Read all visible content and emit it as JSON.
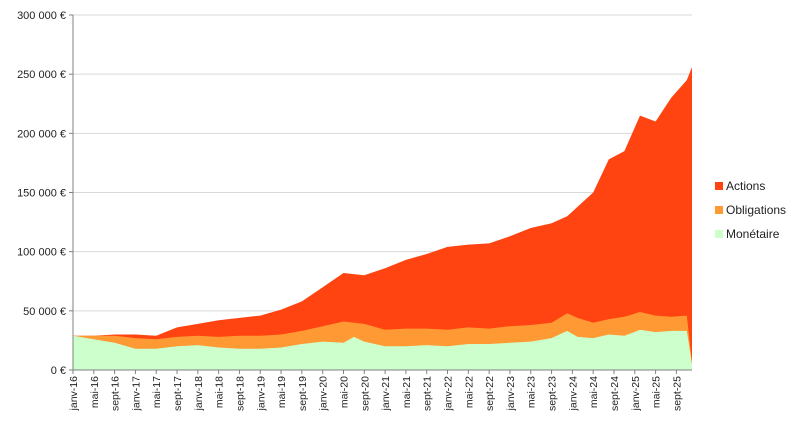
{
  "chart_data": {
    "type": "area",
    "stacked": true,
    "title": "",
    "xlabel": "",
    "ylabel": "",
    "ylim": [
      0,
      300000
    ],
    "yticks": [
      0,
      50000,
      100000,
      150000,
      200000,
      250000,
      300000
    ],
    "ytick_labels": [
      "0 €",
      "50 000 €",
      "100 000 €",
      "150 000 €",
      "200 000 €",
      "250 000 €",
      "300 000 €"
    ],
    "grid": true,
    "legend_position": "right",
    "x_start": "2016-01",
    "x_end": "2025-12",
    "xtick_labels": [
      "janv-16",
      "mai-16",
      "sept-16",
      "janv-17",
      "mai-17",
      "sept-17",
      "janv-18",
      "mai-18",
      "sept-18",
      "janv-19",
      "mai-19",
      "sept-19",
      "janv-20",
      "mai-20",
      "sept-20",
      "janv-21",
      "mai-21",
      "sept-21",
      "janv-22",
      "mai-22",
      "sept-22",
      "janv-23",
      "mai-23",
      "sept-23",
      "janv-24",
      "mai-24",
      "sept-24",
      "janv-25",
      "mai-25",
      "sept-25"
    ],
    "series": [
      {
        "name": "Monétaire",
        "color": "#ccffcc",
        "points": [
          [
            "2016-01",
            29000
          ],
          [
            "2016-05",
            26000
          ],
          [
            "2016-09",
            23000
          ],
          [
            "2017-01",
            18000
          ],
          [
            "2017-05",
            18000
          ],
          [
            "2017-09",
            20000
          ],
          [
            "2018-01",
            21000
          ],
          [
            "2018-05",
            19000
          ],
          [
            "2018-09",
            18000
          ],
          [
            "2019-01",
            18000
          ],
          [
            "2019-05",
            19000
          ],
          [
            "2019-09",
            22000
          ],
          [
            "2020-01",
            24000
          ],
          [
            "2020-05",
            23000
          ],
          [
            "2020-07",
            28000
          ],
          [
            "2020-09",
            24000
          ],
          [
            "2021-01",
            20000
          ],
          [
            "2021-05",
            20000
          ],
          [
            "2021-09",
            21000
          ],
          [
            "2022-01",
            20000
          ],
          [
            "2022-05",
            22000
          ],
          [
            "2022-09",
            22000
          ],
          [
            "2023-01",
            23000
          ],
          [
            "2023-05",
            24000
          ],
          [
            "2023-09",
            27000
          ],
          [
            "2023-12",
            33000
          ],
          [
            "2024-02",
            28000
          ],
          [
            "2024-05",
            27000
          ],
          [
            "2024-08",
            30000
          ],
          [
            "2024-11",
            29000
          ],
          [
            "2025-02",
            34000
          ],
          [
            "2025-05",
            32000
          ],
          [
            "2025-08",
            33000
          ],
          [
            "2025-11",
            33000
          ],
          [
            "2025-12",
            5000
          ]
        ]
      },
      {
        "name": "Obligations",
        "color": "#ff9933",
        "points": [
          [
            "2016-01",
            29000
          ],
          [
            "2016-05",
            29000
          ],
          [
            "2016-09",
            29000
          ],
          [
            "2017-01",
            27000
          ],
          [
            "2017-05",
            26000
          ],
          [
            "2017-09",
            28000
          ],
          [
            "2018-01",
            29000
          ],
          [
            "2018-05",
            28000
          ],
          [
            "2018-09",
            29000
          ],
          [
            "2019-01",
            29000
          ],
          [
            "2019-05",
            30000
          ],
          [
            "2019-09",
            33000
          ],
          [
            "2020-01",
            37000
          ],
          [
            "2020-05",
            41000
          ],
          [
            "2020-09",
            39000
          ],
          [
            "2021-01",
            34000
          ],
          [
            "2021-05",
            35000
          ],
          [
            "2021-09",
            35000
          ],
          [
            "2022-01",
            34000
          ],
          [
            "2022-05",
            36000
          ],
          [
            "2022-09",
            35000
          ],
          [
            "2023-01",
            37000
          ],
          [
            "2023-05",
            38000
          ],
          [
            "2023-09",
            40000
          ],
          [
            "2023-12",
            48000
          ],
          [
            "2024-02",
            44000
          ],
          [
            "2024-05",
            40000
          ],
          [
            "2024-08",
            43000
          ],
          [
            "2024-11",
            45000
          ],
          [
            "2025-02",
            49000
          ],
          [
            "2025-05",
            46000
          ],
          [
            "2025-08",
            45000
          ],
          [
            "2025-11",
            46000
          ],
          [
            "2025-12",
            6000
          ]
        ]
      },
      {
        "name": "Actions",
        "color": "#ff4411",
        "points": [
          [
            "2016-01",
            29000
          ],
          [
            "2016-05",
            29000
          ],
          [
            "2016-09",
            30000
          ],
          [
            "2017-01",
            30000
          ],
          [
            "2017-05",
            29000
          ],
          [
            "2017-09",
            36000
          ],
          [
            "2018-01",
            39000
          ],
          [
            "2018-05",
            42000
          ],
          [
            "2018-09",
            44000
          ],
          [
            "2019-01",
            46000
          ],
          [
            "2019-05",
            51000
          ],
          [
            "2019-09",
            58000
          ],
          [
            "2020-01",
            70000
          ],
          [
            "2020-05",
            82000
          ],
          [
            "2020-09",
            80000
          ],
          [
            "2021-01",
            86000
          ],
          [
            "2021-05",
            93000
          ],
          [
            "2021-09",
            98000
          ],
          [
            "2022-01",
            104000
          ],
          [
            "2022-05",
            106000
          ],
          [
            "2022-09",
            107000
          ],
          [
            "2023-01",
            113000
          ],
          [
            "2023-05",
            120000
          ],
          [
            "2023-09",
            124000
          ],
          [
            "2023-12",
            130000
          ],
          [
            "2024-02",
            138000
          ],
          [
            "2024-05",
            150000
          ],
          [
            "2024-08",
            178000
          ],
          [
            "2024-11",
            185000
          ],
          [
            "2025-02",
            215000
          ],
          [
            "2025-05",
            210000
          ],
          [
            "2025-08",
            230000
          ],
          [
            "2025-11",
            245000
          ],
          [
            "2025-12",
            256000
          ]
        ]
      }
    ]
  }
}
